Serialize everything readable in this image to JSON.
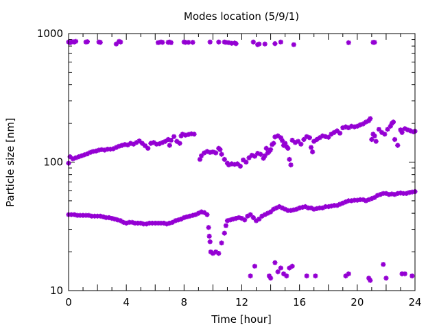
{
  "chart_data": {
    "type": "scatter",
    "title": "Modes location (5/9/1)",
    "xlabel": "Time [hour]",
    "ylabel": "Particle size [nm]",
    "xlim": [
      0,
      24
    ],
    "ylim": [
      10,
      1000
    ],
    "yscale": "log",
    "xticks": [
      0,
      4,
      8,
      12,
      16,
      20,
      24
    ],
    "xtick_labels": [
      "0",
      "4",
      "8",
      "12",
      "16",
      "20",
      "24"
    ],
    "yticks": [
      10,
      100,
      1000
    ],
    "ytick_labels": [
      "10",
      "100",
      "1000"
    ],
    "grid": false,
    "legend": "none",
    "marker": "asterisk",
    "color": "#9400d3",
    "series": [
      {
        "points": [
          [
            0.0,
            860
          ],
          [
            0.1,
            850
          ],
          [
            0.2,
            860
          ],
          [
            0.3,
            865
          ],
          [
            0.4,
            860
          ],
          [
            0.5,
            870
          ],
          [
            1.2,
            860
          ],
          [
            1.3,
            865
          ],
          [
            2.1,
            860
          ],
          [
            2.2,
            855
          ],
          [
            3.3,
            830
          ],
          [
            3.5,
            870
          ],
          [
            3.6,
            860
          ],
          [
            6.2,
            850
          ],
          [
            6.4,
            860
          ],
          [
            6.5,
            855
          ],
          [
            6.9,
            855
          ],
          [
            7.0,
            860
          ],
          [
            7.1,
            850
          ],
          [
            8.0,
            860
          ],
          [
            8.1,
            855
          ],
          [
            8.3,
            855
          ],
          [
            8.6,
            855
          ],
          [
            9.8,
            860
          ],
          [
            10.4,
            860
          ],
          [
            10.8,
            860
          ],
          [
            10.9,
            855
          ],
          [
            11.1,
            850
          ],
          [
            11.3,
            840
          ],
          [
            11.5,
            845
          ],
          [
            11.6,
            835
          ],
          [
            12.8,
            860
          ],
          [
            13.1,
            820
          ],
          [
            13.2,
            830
          ],
          [
            13.6,
            830
          ],
          [
            14.3,
            835
          ],
          [
            14.7,
            860
          ],
          [
            15.6,
            820
          ],
          [
            19.4,
            850
          ],
          [
            21.1,
            855
          ],
          [
            21.2,
            855
          ]
        ]
      },
      {
        "points": [
          [
            0.0,
            98
          ],
          [
            0.1,
            110
          ],
          [
            0.3,
            106
          ],
          [
            0.5,
            108
          ],
          [
            0.7,
            110
          ],
          [
            0.9,
            112
          ],
          [
            1.1,
            114
          ],
          [
            1.3,
            116
          ],
          [
            1.5,
            119
          ],
          [
            1.7,
            121
          ],
          [
            1.9,
            122
          ],
          [
            2.1,
            124
          ],
          [
            2.3,
            125
          ],
          [
            2.5,
            124
          ],
          [
            2.7,
            126
          ],
          [
            2.9,
            126
          ],
          [
            3.1,
            127
          ],
          [
            3.3,
            130
          ],
          [
            3.5,
            133
          ],
          [
            3.7,
            135
          ],
          [
            3.9,
            137
          ],
          [
            4.1,
            136
          ],
          [
            4.3,
            140
          ],
          [
            4.5,
            138
          ],
          [
            4.7,
            142
          ],
          [
            4.9,
            146
          ],
          [
            5.1,
            140
          ],
          [
            5.3,
            134
          ],
          [
            5.5,
            128
          ],
          [
            5.7,
            140
          ],
          [
            5.9,
            142
          ],
          [
            6.1,
            138
          ],
          [
            6.3,
            139
          ],
          [
            6.5,
            142
          ],
          [
            6.7,
            145
          ],
          [
            6.9,
            150
          ],
          [
            7.0,
            135
          ],
          [
            7.1,
            148
          ],
          [
            7.3,
            158
          ],
          [
            7.5,
            145
          ],
          [
            7.7,
            140
          ],
          [
            7.8,
            160
          ],
          [
            7.9,
            165
          ],
          [
            8.1,
            162
          ],
          [
            8.3,
            164
          ],
          [
            8.5,
            166
          ],
          [
            8.7,
            165
          ],
          [
            9.1,
            105
          ],
          [
            9.2,
            112
          ],
          [
            9.4,
            118
          ],
          [
            9.6,
            121
          ],
          [
            9.8,
            119
          ],
          [
            10.0,
            120
          ],
          [
            10.2,
            118
          ],
          [
            10.4,
            128
          ],
          [
            10.5,
            125
          ],
          [
            10.6,
            115
          ],
          [
            10.8,
            105
          ],
          [
            11.0,
            98
          ],
          [
            11.1,
            95
          ],
          [
            11.3,
            97
          ],
          [
            11.5,
            96
          ],
          [
            11.7,
            97
          ],
          [
            11.9,
            93
          ],
          [
            12.1,
            104
          ],
          [
            12.3,
            100
          ],
          [
            12.5,
            108
          ],
          [
            12.7,
            113
          ],
          [
            12.9,
            111
          ],
          [
            13.1,
            117
          ],
          [
            13.3,
            115
          ],
          [
            13.5,
            107
          ],
          [
            13.6,
            112
          ],
          [
            13.7,
            128
          ],
          [
            13.8,
            118
          ],
          [
            13.9,
            121
          ],
          [
            14.0,
            125
          ],
          [
            14.1,
            137
          ],
          [
            14.2,
            140
          ],
          [
            14.3,
            157
          ],
          [
            14.5,
            160
          ],
          [
            14.7,
            155
          ],
          [
            14.8,
            147
          ],
          [
            14.9,
            135
          ],
          [
            15.0,
            140
          ],
          [
            15.1,
            132
          ],
          [
            15.2,
            128
          ],
          [
            15.3,
            105
          ],
          [
            15.4,
            95
          ],
          [
            15.5,
            148
          ],
          [
            15.7,
            142
          ],
          [
            15.9,
            145
          ],
          [
            16.1,
            138
          ],
          [
            16.3,
            150
          ],
          [
            16.5,
            158
          ],
          [
            16.7,
            155
          ],
          [
            16.8,
            130
          ],
          [
            16.9,
            120
          ],
          [
            17.0,
            145
          ],
          [
            17.2,
            150
          ],
          [
            17.4,
            155
          ],
          [
            17.6,
            160
          ],
          [
            17.8,
            158
          ],
          [
            18.0,
            156
          ],
          [
            18.2,
            165
          ],
          [
            18.4,
            170
          ],
          [
            18.6,
            175
          ],
          [
            18.8,
            168
          ],
          [
            19.0,
            185
          ],
          [
            19.2,
            188
          ],
          [
            19.4,
            185
          ],
          [
            19.6,
            190
          ],
          [
            19.8,
            188
          ],
          [
            20.0,
            190
          ],
          [
            20.2,
            195
          ],
          [
            20.4,
            198
          ],
          [
            20.6,
            205
          ],
          [
            20.8,
            210
          ],
          [
            20.9,
            218
          ],
          [
            21.0,
            150
          ],
          [
            21.1,
            165
          ],
          [
            21.2,
            160
          ],
          [
            21.3,
            145
          ],
          [
            21.5,
            180
          ],
          [
            21.7,
            170
          ],
          [
            21.9,
            165
          ],
          [
            22.1,
            180
          ],
          [
            22.3,
            190
          ],
          [
            22.4,
            200
          ],
          [
            22.5,
            205
          ],
          [
            22.6,
            150
          ],
          [
            22.8,
            135
          ],
          [
            23.0,
            178
          ],
          [
            23.1,
            170
          ],
          [
            23.3,
            182
          ],
          [
            23.5,
            178
          ],
          [
            23.7,
            175
          ],
          [
            23.9,
            172
          ],
          [
            24.0,
            174
          ]
        ]
      },
      {
        "points": [
          [
            0.0,
            39
          ],
          [
            0.2,
            39
          ],
          [
            0.4,
            39
          ],
          [
            0.6,
            38.5
          ],
          [
            0.8,
            38.5
          ],
          [
            1.0,
            38.5
          ],
          [
            1.2,
            38.5
          ],
          [
            1.4,
            38.5
          ],
          [
            1.6,
            38
          ],
          [
            1.8,
            38
          ],
          [
            2.0,
            38
          ],
          [
            2.2,
            38
          ],
          [
            2.4,
            37.5
          ],
          [
            2.6,
            37
          ],
          [
            2.8,
            37
          ],
          [
            3.0,
            36.5
          ],
          [
            3.2,
            36
          ],
          [
            3.4,
            35.5
          ],
          [
            3.6,
            35
          ],
          [
            3.8,
            34
          ],
          [
            4.0,
            33.5
          ],
          [
            4.2,
            34
          ],
          [
            4.4,
            34
          ],
          [
            4.6,
            33.5
          ],
          [
            4.8,
            33.5
          ],
          [
            5.0,
            33.5
          ],
          [
            5.2,
            33
          ],
          [
            5.4,
            33
          ],
          [
            5.6,
            33.5
          ],
          [
            5.8,
            33.5
          ],
          [
            6.0,
            33.5
          ],
          [
            6.2,
            33.5
          ],
          [
            6.4,
            33.5
          ],
          [
            6.6,
            33.5
          ],
          [
            6.8,
            33
          ],
          [
            7.0,
            33.5
          ],
          [
            7.2,
            34
          ],
          [
            7.4,
            35
          ],
          [
            7.6,
            35.5
          ],
          [
            7.8,
            36
          ],
          [
            8.0,
            37
          ],
          [
            8.2,
            37.5
          ],
          [
            8.4,
            38
          ],
          [
            8.6,
            38.5
          ],
          [
            8.8,
            39
          ],
          [
            9.0,
            40
          ],
          [
            9.2,
            41
          ],
          [
            9.4,
            40.5
          ],
          [
            9.6,
            39
          ],
          [
            9.7,
            31
          ],
          [
            9.75,
            26.5
          ],
          [
            9.8,
            24
          ],
          [
            9.85,
            20
          ],
          [
            10.0,
            19.5
          ],
          [
            10.2,
            20
          ],
          [
            10.4,
            19.5
          ],
          [
            10.6,
            23.5
          ],
          [
            10.8,
            28
          ],
          [
            10.9,
            32
          ],
          [
            11.0,
            35
          ],
          [
            11.2,
            35.5
          ],
          [
            11.4,
            36
          ],
          [
            11.6,
            36.5
          ],
          [
            11.8,
            37
          ],
          [
            12.0,
            36.5
          ],
          [
            12.2,
            35.5
          ],
          [
            12.4,
            38
          ],
          [
            12.6,
            39
          ],
          [
            12.8,
            37
          ],
          [
            13.0,
            35
          ],
          [
            13.2,
            36
          ],
          [
            13.4,
            38
          ],
          [
            13.6,
            39
          ],
          [
            13.8,
            40
          ],
          [
            14.0,
            41
          ],
          [
            14.2,
            43
          ],
          [
            14.4,
            44
          ],
          [
            14.6,
            45
          ],
          [
            14.8,
            44
          ],
          [
            15.0,
            43
          ],
          [
            15.2,
            42
          ],
          [
            15.4,
            42
          ],
          [
            15.6,
            42.5
          ],
          [
            15.8,
            43
          ],
          [
            16.0,
            44
          ],
          [
            16.2,
            44.5
          ],
          [
            16.4,
            45
          ],
          [
            16.6,
            44
          ],
          [
            16.8,
            44
          ],
          [
            17.0,
            43
          ],
          [
            17.2,
            43.5
          ],
          [
            17.4,
            44
          ],
          [
            17.6,
            44
          ],
          [
            17.8,
            45
          ],
          [
            18.0,
            45
          ],
          [
            18.2,
            45.5
          ],
          [
            18.4,
            46
          ],
          [
            18.6,
            46
          ],
          [
            18.8,
            47
          ],
          [
            19.0,
            48
          ],
          [
            19.2,
            49
          ],
          [
            19.4,
            50
          ],
          [
            19.6,
            50
          ],
          [
            19.8,
            50.5
          ],
          [
            20.0,
            50.5
          ],
          [
            20.2,
            51
          ],
          [
            20.4,
            51
          ],
          [
            20.6,
            50
          ],
          [
            20.8,
            51
          ],
          [
            21.0,
            52
          ],
          [
            21.2,
            53
          ],
          [
            21.4,
            55
          ],
          [
            21.6,
            56
          ],
          [
            21.8,
            57
          ],
          [
            22.0,
            57
          ],
          [
            22.2,
            56
          ],
          [
            22.4,
            56.5
          ],
          [
            22.6,
            56
          ],
          [
            22.8,
            57
          ],
          [
            23.0,
            57.5
          ],
          [
            23.2,
            57
          ],
          [
            23.4,
            57
          ],
          [
            23.6,
            58
          ],
          [
            23.8,
            58.5
          ],
          [
            24.0,
            59
          ]
        ]
      },
      {
        "points": [
          [
            12.6,
            13
          ],
          [
            12.9,
            15.5
          ],
          [
            13.9,
            13
          ],
          [
            14.0,
            12.5
          ],
          [
            14.3,
            16.5
          ],
          [
            14.5,
            14
          ],
          [
            14.7,
            15
          ],
          [
            14.9,
            13.5
          ],
          [
            15.1,
            13
          ],
          [
            15.3,
            15
          ],
          [
            15.5,
            15.5
          ],
          [
            16.5,
            13
          ],
          [
            17.1,
            13
          ],
          [
            19.2,
            13
          ],
          [
            19.4,
            13.5
          ],
          [
            20.8,
            12.5
          ],
          [
            20.9,
            12
          ],
          [
            21.8,
            16
          ],
          [
            22.0,
            12.5
          ],
          [
            23.1,
            13.5
          ],
          [
            23.3,
            13.5
          ],
          [
            23.8,
            13
          ]
        ]
      }
    ]
  }
}
